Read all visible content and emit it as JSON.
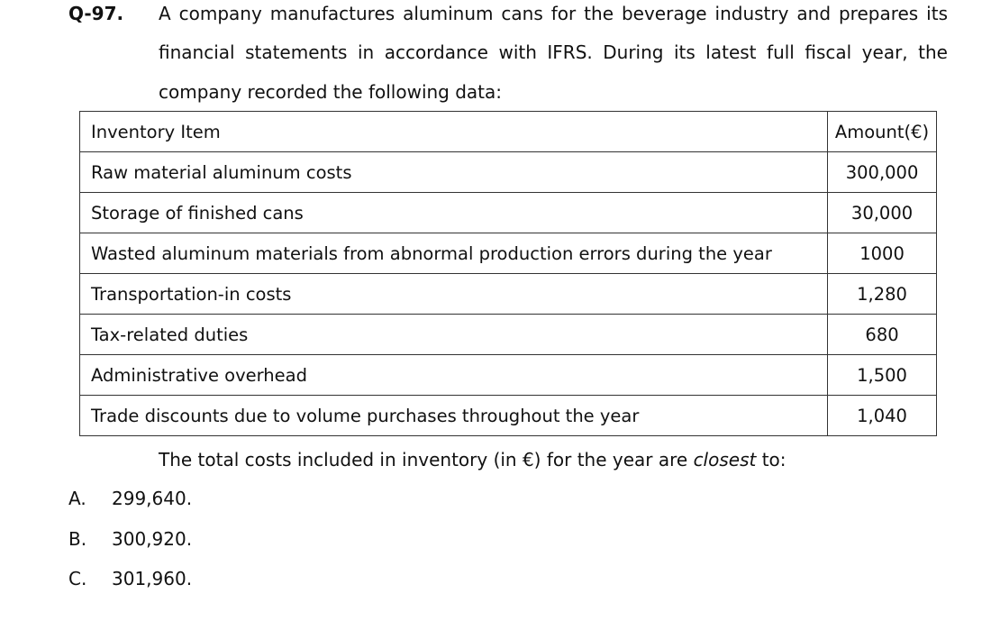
{
  "question": {
    "number": "Q-97.",
    "stem_lines": [
      "A company manufactures aluminum cans for the beverage industry and prepares its",
      "financial statements in accordance with IFRS. During its latest full fiscal year, the",
      "company recorded the following data:"
    ],
    "table": {
      "headers": [
        "Inventory Item",
        "Amount(€)"
      ],
      "rows": [
        {
          "item": "Raw material aluminum costs",
          "amount": "300,000"
        },
        {
          "item": "Storage of finished cans",
          "amount": "30,000"
        },
        {
          "item": "Wasted aluminum materials from abnormal production errors during the year",
          "amount": "1000"
        },
        {
          "item": "Transportation-in costs",
          "amount": "1,280"
        },
        {
          "item": "Tax-related duties",
          "amount": "680"
        },
        {
          "item": "Administrative overhead",
          "amount": "1,500"
        },
        {
          "item": "Trade discounts due to volume purchases throughout the year",
          "amount": "1,040"
        }
      ]
    },
    "closing": {
      "before": "The total costs included in inventory (in €) for the year are ",
      "emphasis": "closest",
      "after": " to:"
    },
    "options": [
      {
        "letter": "A.",
        "value": "299,640."
      },
      {
        "letter": "B.",
        "value": "300,920."
      },
      {
        "letter": "C.",
        "value": "301,960."
      }
    ]
  }
}
